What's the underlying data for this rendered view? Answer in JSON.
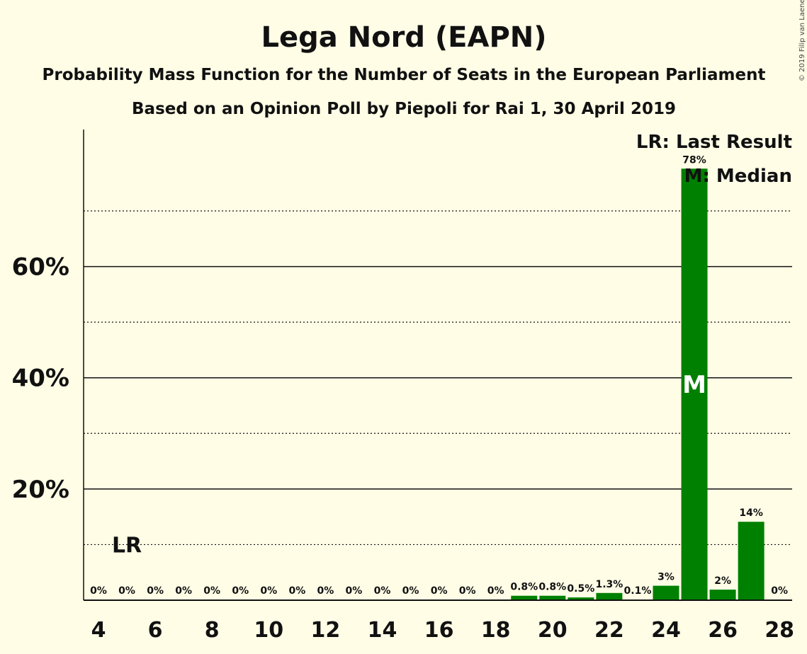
{
  "chart_data": {
    "type": "bar",
    "title": "Lega Nord (EAPN)",
    "subtitle": "Probability Mass Function for the Number of Seats in the European Parliament",
    "subtitle2": "Based on an Opinion Poll by Piepoli for Rai 1, 30 April 2019",
    "copyright": "© 2019 Filip van Laenen",
    "legend": {
      "last_result": "LR: Last Result",
      "median": "M: Median",
      "placement": "top-right"
    },
    "x": [
      4,
      5,
      6,
      7,
      8,
      9,
      10,
      11,
      12,
      13,
      14,
      15,
      16,
      17,
      18,
      19,
      20,
      21,
      22,
      23,
      24,
      25,
      26,
      27,
      28
    ],
    "values": [
      0,
      0,
      0,
      0,
      0,
      0,
      0,
      0,
      0,
      0,
      0,
      0,
      0,
      0,
      0,
      0.8,
      0.8,
      0.5,
      1.3,
      0.1,
      2.6,
      77.6,
      1.9,
      14.1,
      0
    ],
    "value_labels": [
      "0%",
      "0%",
      "0%",
      "0%",
      "0%",
      "0%",
      "0%",
      "0%",
      "0%",
      "0%",
      "0%",
      "0%",
      "0%",
      "0%",
      "0%",
      "0.8%",
      "0.8%",
      "0.5%",
      "1.3%",
      "0.1%",
      "3%",
      "78%",
      "2%",
      "14%",
      "0%"
    ],
    "xticks": [
      "4",
      "6",
      "8",
      "10",
      "12",
      "14",
      "16",
      "18",
      "20",
      "22",
      "24",
      "26",
      "28"
    ],
    "yticks": [
      "20%",
      "40%",
      "60%"
    ],
    "ylim": [
      0,
      84
    ],
    "grid_major": [
      20,
      40,
      60
    ],
    "grid_minor": [
      10,
      30,
      50,
      70
    ],
    "bar_color": "#008000",
    "last_result_seat": 5,
    "last_result_label": "LR",
    "median_seat": 25,
    "median_label": "M"
  }
}
